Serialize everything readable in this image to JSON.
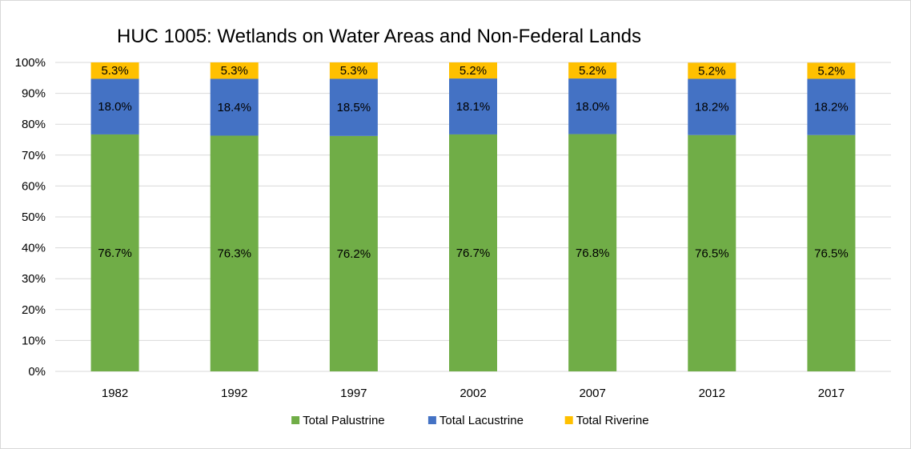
{
  "chart_data": {
    "type": "bar",
    "stacked": true,
    "title": "HUC 1005: Wetlands on Water Areas and Non-Federal Lands",
    "xlabel": "",
    "ylabel": "",
    "categories": [
      "1982",
      "1992",
      "1997",
      "2002",
      "2007",
      "2012",
      "2017"
    ],
    "series": [
      {
        "name": "Total Palustrine",
        "color": "#70ad47",
        "values": [
          76.7,
          76.3,
          76.2,
          76.7,
          76.8,
          76.5,
          76.5
        ],
        "labels": [
          "76.7%",
          "76.3%",
          "76.2%",
          "76.7%",
          "76.8%",
          "76.5%",
          "76.5%"
        ]
      },
      {
        "name": "Total Lacustrine",
        "color": "#4472c4",
        "values": [
          18.0,
          18.4,
          18.5,
          18.1,
          18.0,
          18.2,
          18.2
        ],
        "labels": [
          "18.0%",
          "18.4%",
          "18.5%",
          "18.1%",
          "18.0%",
          "18.2%",
          "18.2%"
        ]
      },
      {
        "name": "Total Riverine",
        "color": "#ffc000",
        "values": [
          5.3,
          5.3,
          5.3,
          5.2,
          5.2,
          5.2,
          5.2
        ],
        "labels": [
          "5.3%",
          "5.3%",
          "5.3%",
          "5.2%",
          "5.2%",
          "5.2%",
          "5.2%"
        ]
      }
    ],
    "ylim": [
      0,
      100
    ],
    "yticks": [
      "0%",
      "10%",
      "20%",
      "30%",
      "40%",
      "50%",
      "60%",
      "70%",
      "80%",
      "90%",
      "100%"
    ],
    "grid": true,
    "legend_position": "bottom"
  }
}
